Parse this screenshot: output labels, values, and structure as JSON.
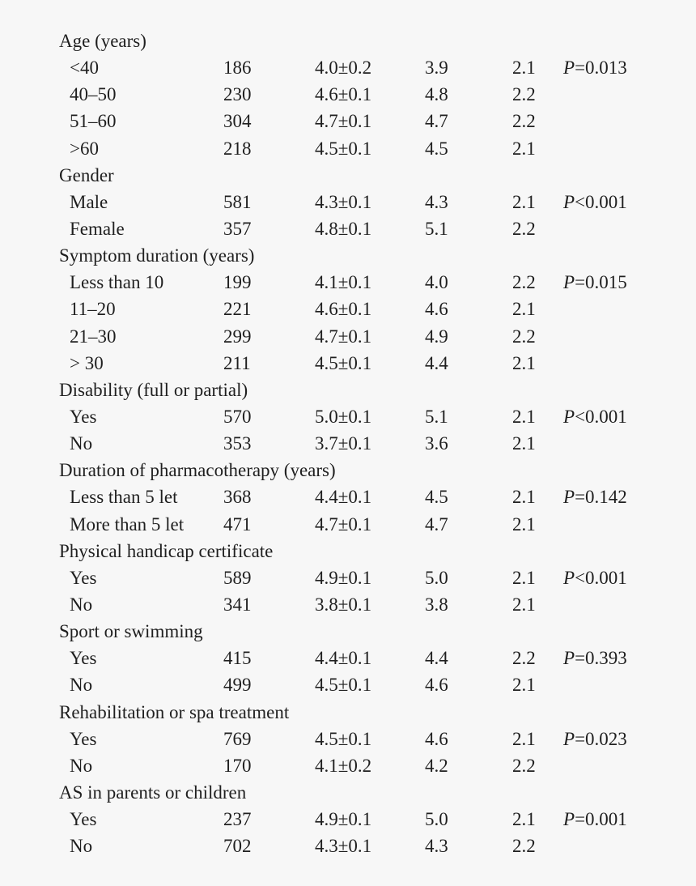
{
  "groups": [
    {
      "label": "Age (years)",
      "rows": [
        {
          "label": "<40",
          "n": "186",
          "mean": "4.0±0.2",
          "median": "3.9",
          "sd": "2.1",
          "p_sym": "P",
          "p_rest": "=0.013"
        },
        {
          "label": "40–50",
          "n": "230",
          "mean": "4.6±0.1",
          "median": "4.8",
          "sd": "2.2",
          "p_sym": "",
          "p_rest": ""
        },
        {
          "label": "51–60",
          "n": "304",
          "mean": "4.7±0.1",
          "median": "4.7",
          "sd": "2.2",
          "p_sym": "",
          "p_rest": ""
        },
        {
          "label": ">60",
          "n": "218",
          "mean": "4.5±0.1",
          "median": "4.5",
          "sd": "2.1",
          "p_sym": "",
          "p_rest": ""
        }
      ]
    },
    {
      "label": "Gender",
      "rows": [
        {
          "label": "Male",
          "n": "581",
          "mean": "4.3±0.1",
          "median": "4.3",
          "sd": "2.1",
          "p_sym": "P",
          "p_rest": "<0.001"
        },
        {
          "label": "Female",
          "n": "357",
          "mean": "4.8±0.1",
          "median": "5.1",
          "sd": "2.2",
          "p_sym": "",
          "p_rest": ""
        }
      ]
    },
    {
      "label": "Symptom duration (years)",
      "rows": [
        {
          "label": "Less than 10",
          "n": "199",
          "mean": "4.1±0.1",
          "median": "4.0",
          "sd": "2.2",
          "p_sym": "P",
          "p_rest": "=0.015"
        },
        {
          "label": "11–20",
          "n": "221",
          "mean": "4.6±0.1",
          "median": "4.6",
          "sd": "2.1",
          "p_sym": "",
          "p_rest": ""
        },
        {
          "label": "21–30",
          "n": "299",
          "mean": "4.7±0.1",
          "median": "4.9",
          "sd": "2.2",
          "p_sym": "",
          "p_rest": ""
        },
        {
          "label": "> 30",
          "n": "211",
          "mean": "4.5±0.1",
          "median": "4.4",
          "sd": "2.1",
          "p_sym": "",
          "p_rest": ""
        }
      ]
    },
    {
      "label": "Disability (full or partial)",
      "rows": [
        {
          "label": "Yes",
          "n": "570",
          "mean": "5.0±0.1",
          "median": "5.1",
          "sd": "2.1",
          "p_sym": "P",
          "p_rest": "<0.001"
        },
        {
          "label": "No",
          "n": "353",
          "mean": "3.7±0.1",
          "median": "3.6",
          "sd": "2.1",
          "p_sym": "",
          "p_rest": ""
        }
      ]
    },
    {
      "label": "Duration of pharmacotherapy (years)",
      "rows": [
        {
          "label": "Less than 5 let",
          "n": "368",
          "mean": "4.4±0.1",
          "median": "4.5",
          "sd": "2.1",
          "p_sym": "P",
          "p_rest": "=0.142"
        },
        {
          "label": "More than 5 let",
          "n": "471",
          "mean": "4.7±0.1",
          "median": "4.7",
          "sd": "2.1",
          "p_sym": "",
          "p_rest": ""
        }
      ]
    },
    {
      "label": "Physical handicap certificate",
      "rows": [
        {
          "label": "Yes",
          "n": "589",
          "mean": "4.9±0.1",
          "median": "5.0",
          "sd": "2.1",
          "p_sym": "P",
          "p_rest": "<0.001"
        },
        {
          "label": "No",
          "n": "341",
          "mean": "3.8±0.1",
          "median": "3.8",
          "sd": "2.1",
          "p_sym": "",
          "p_rest": ""
        }
      ]
    },
    {
      "label": "Sport or swimming",
      "rows": [
        {
          "label": "Yes",
          "n": "415",
          "mean": "4.4±0.1",
          "median": "4.4",
          "sd": "2.2",
          "p_sym": "P",
          "p_rest": "=0.393"
        },
        {
          "label": "No",
          "n": "499",
          "mean": "4.5±0.1",
          "median": "4.6",
          "sd": "2.1",
          "p_sym": "",
          "p_rest": ""
        }
      ]
    },
    {
      "label": "Rehabilitation or spa treatment",
      "rows": [
        {
          "label": "Yes",
          "n": "769",
          "mean": "4.5±0.1",
          "median": "4.6",
          "sd": "2.1",
          "p_sym": "P",
          "p_rest": "=0.023"
        },
        {
          "label": "No",
          "n": "170",
          "mean": "4.1±0.2",
          "median": "4.2",
          "sd": "2.2",
          "p_sym": "",
          "p_rest": ""
        }
      ]
    },
    {
      "label": "AS in parents or children",
      "rows": [
        {
          "label": "Yes",
          "n": "237",
          "mean": "4.9±0.1",
          "median": "5.0",
          "sd": "2.1",
          "p_sym": "P",
          "p_rest": "=0.001"
        },
        {
          "label": "No",
          "n": "702",
          "mean": "4.3±0.1",
          "median": "4.3",
          "sd": "2.2",
          "p_sym": "",
          "p_rest": ""
        }
      ]
    }
  ]
}
